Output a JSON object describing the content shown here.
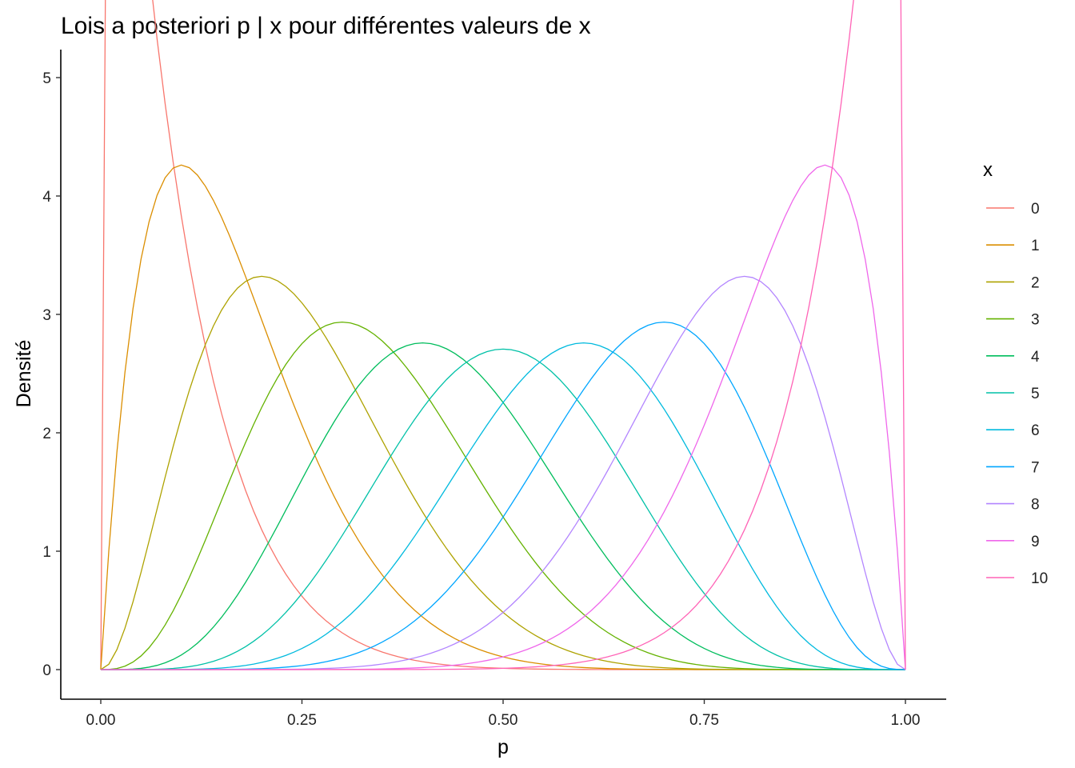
{
  "chart_data": {
    "type": "line",
    "title": "Lois a posteriori p | x pour différentes valeurs de x",
    "xlabel": "p",
    "ylabel": "Densité",
    "xlim": [
      0,
      1
    ],
    "ylim": [
      0,
      5
    ],
    "xticks": [
      0,
      0.25,
      0.5,
      0.75,
      1
    ],
    "xtick_labels": [
      "0.00",
      "0.25",
      "0.50",
      "0.75",
      "1.00"
    ],
    "yticks": [
      0,
      1,
      2,
      3,
      4,
      5
    ],
    "ytick_labels": [
      "0",
      "1",
      "2",
      "3",
      "4",
      "5"
    ],
    "grid": false,
    "legend": {
      "title": "x",
      "placement": "right"
    },
    "trials": 10,
    "x": [
      0,
      0.01,
      0.02,
      0.03,
      0.04,
      0.05,
      0.06,
      0.07,
      0.08,
      0.09,
      0.1,
      0.11,
      0.12,
      0.13,
      0.14,
      0.15,
      0.16,
      0.17,
      0.18,
      0.19,
      0.2,
      0.21,
      0.22,
      0.23,
      0.24,
      0.25,
      0.26,
      0.27,
      0.28,
      0.29,
      0.3,
      0.31,
      0.32,
      0.33,
      0.34,
      0.35,
      0.36,
      0.37,
      0.38,
      0.39,
      0.4,
      0.41,
      0.42,
      0.43,
      0.44,
      0.45,
      0.46,
      0.47,
      0.48,
      0.49,
      0.5,
      0.51,
      0.52,
      0.53,
      0.54,
      0.55,
      0.56,
      0.57,
      0.58,
      0.59,
      0.6,
      0.61,
      0.62,
      0.63,
      0.64,
      0.65,
      0.66,
      0.67,
      0.68,
      0.69,
      0.7,
      0.71,
      0.72,
      0.73,
      0.74,
      0.75,
      0.76,
      0.77,
      0.78,
      0.79,
      0.8,
      0.81,
      0.82,
      0.83,
      0.84,
      0.85,
      0.86,
      0.87,
      0.88,
      0.89,
      0.9,
      0.91,
      0.92,
      0.93,
      0.94,
      0.95,
      0.96,
      0.97,
      0.98,
      0.99,
      1
    ],
    "series": [
      {
        "name": "0",
        "color": "#F8766D",
        "x_value": 0
      },
      {
        "name": "1",
        "color": "#DB8E00",
        "x_value": 1
      },
      {
        "name": "2",
        "color": "#AEA200",
        "x_value": 2
      },
      {
        "name": "3",
        "color": "#64B200",
        "x_value": 3
      },
      {
        "name": "4",
        "color": "#00BD5C",
        "x_value": 4
      },
      {
        "name": "5",
        "color": "#00C1A7",
        "x_value": 5
      },
      {
        "name": "6",
        "color": "#00BADE",
        "x_value": 6
      },
      {
        "name": "7",
        "color": "#00A6FF",
        "x_value": 7
      },
      {
        "name": "8",
        "color": "#B385FF",
        "x_value": 8
      },
      {
        "name": "9",
        "color": "#EF67EB",
        "x_value": 9
      },
      {
        "name": "10",
        "color": "#FF63B6",
        "x_value": 10
      }
    ]
  }
}
